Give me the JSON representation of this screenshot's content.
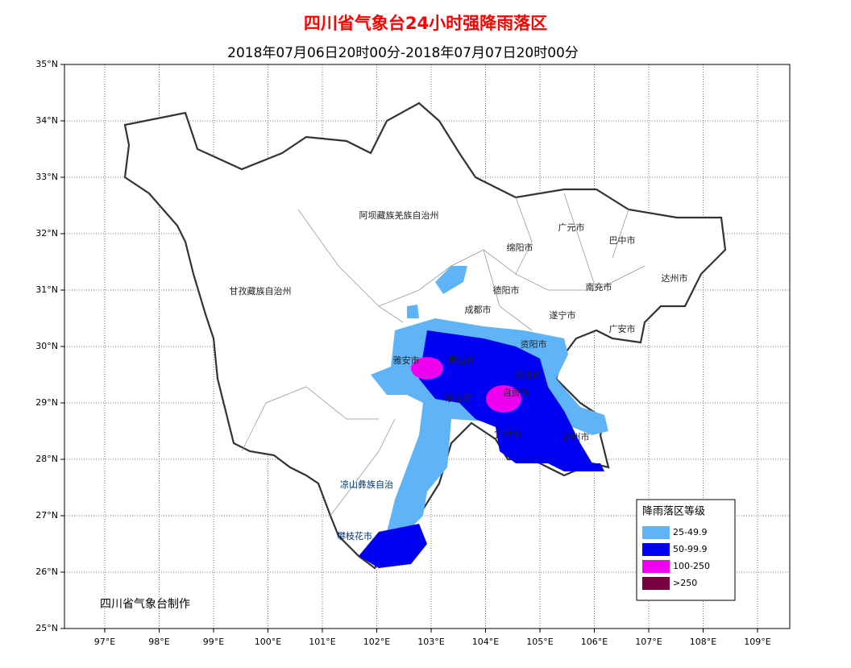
{
  "header": {
    "title": "四川省气象台24小时强降雨落区",
    "subtitle": "2018年07月06日20时00分-2018年07月07日20时00分"
  },
  "lat_labels": [
    "35°N",
    "34°N",
    "33°N",
    "32°N",
    "31°N",
    "30°N",
    "29°N",
    "28°N",
    "27°N",
    "26°N",
    "25°N"
  ],
  "lon_labels": [
    "97°E",
    "98°E",
    "99°E",
    "100°E",
    "101°E",
    "102°E",
    "103°E",
    "104°E",
    "105°E",
    "106°E",
    "107°E",
    "108°E",
    "109°E"
  ],
  "places": [
    "阿坝藏族羌族自治州",
    "甘孜藏族自治州",
    "绵阳市",
    "广元市",
    "巴中市",
    "达州市",
    "南充市",
    "德阳市",
    "成都市",
    "遂宁市",
    "广安市",
    "资阳市",
    "雅安市",
    "眉山市",
    "内江市",
    "自贡市",
    "乐山市",
    "宜宾市",
    "泸州市",
    "凉山彝族自治",
    "攀枝花市"
  ],
  "legend": {
    "title": "降雨落区等级",
    "items": [
      {
        "label": "25-49.9",
        "color": "#5fb4f8"
      },
      {
        "label": "50-99.9",
        "color": "#0000f0"
      },
      {
        "label": "100-250",
        "color": "#f000f0"
      },
      {
        "label": ">250",
        "color": "#780040"
      }
    ]
  },
  "credit": "四川省气象台制作"
}
